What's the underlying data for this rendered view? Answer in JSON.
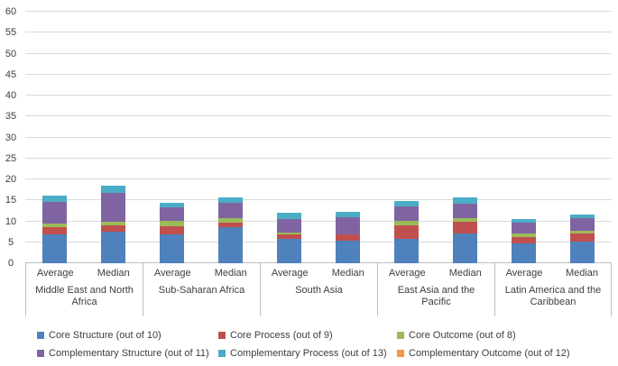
{
  "chart_data": {
    "type": "bar",
    "stacked": true,
    "title": "",
    "xlabel": "",
    "ylabel": "",
    "ylim": [
      0,
      60
    ],
    "yticks": [
      0,
      5,
      10,
      15,
      20,
      25,
      30,
      35,
      40,
      45,
      50,
      55,
      60
    ],
    "grid": true,
    "legend_position": "bottom",
    "group_labels": [
      "Middle East and North Africa",
      "Sub-Saharan Africa",
      "South Asia",
      "East Asia and the Pacific",
      "Latin America and the Caribbean"
    ],
    "categories": [
      "Average",
      "Median",
      "Average",
      "Median",
      "Average",
      "Median",
      "Average",
      "Median",
      "Average",
      "Median"
    ],
    "series": [
      {
        "name": "Core Structure (out of 10)",
        "color": "#4f81bd",
        "values": [
          6.8,
          7.5,
          6.9,
          8.5,
          5.8,
          5.3,
          5.8,
          7.0,
          4.7,
          5.2
        ]
      },
      {
        "name": "Core Process (out of 9)",
        "color": "#c0504d",
        "values": [
          1.8,
          1.6,
          1.9,
          1.2,
          1.0,
          1.5,
          3.2,
          3.0,
          1.5,
          1.8
        ]
      },
      {
        "name": "Core Outcome (out of 8)",
        "color": "#9bbb59",
        "values": [
          0.9,
          0.9,
          1.4,
          1.0,
          0.6,
          0.0,
          1.2,
          0.8,
          0.8,
          0.7
        ]
      },
      {
        "name": "Complementary Structure (out of 11)",
        "color": "#8064a2",
        "values": [
          5.1,
          6.7,
          3.2,
          3.8,
          3.1,
          4.1,
          3.3,
          3.5,
          2.7,
          3.1
        ]
      },
      {
        "name": "Complementary Process (out of 13)",
        "color": "#4bacc6",
        "values": [
          1.5,
          1.9,
          1.1,
          1.3,
          1.5,
          1.3,
          1.4,
          1.5,
          0.8,
          0.9
        ]
      },
      {
        "name": "Complementary Outcome (out of 12)",
        "color": "#f79646",
        "values": [
          0,
          0,
          0,
          0,
          0,
          0,
          0,
          0,
          0,
          0
        ]
      }
    ],
    "bar_totals": [
      16.1,
      18.6,
      14.5,
      15.8,
      12.0,
      12.2,
      14.9,
      15.8,
      10.5,
      11.7
    ]
  }
}
